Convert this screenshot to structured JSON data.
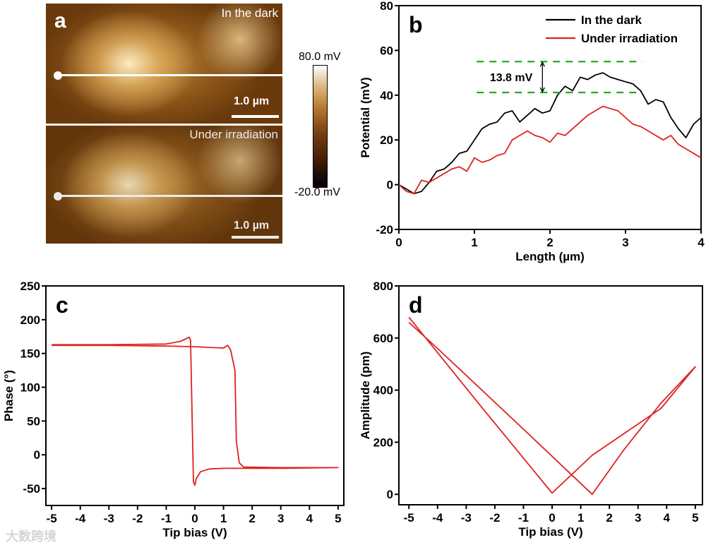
{
  "panel_a": {
    "label": "a",
    "top_image_label": "In the dark",
    "bottom_image_label": "Under irradiation",
    "scale_bar": "1.0 µm",
    "colorbar_max": "80.0 mV",
    "colorbar_min": "-20.0 mV"
  },
  "watermark": "大数跨境",
  "chart_data": [
    {
      "id": "b",
      "type": "line",
      "panel_label": "b",
      "xlabel": "Length (µm)",
      "ylabel": "Potential (mV)",
      "xlim": [
        0,
        4
      ],
      "ylim": [
        -20,
        80
      ],
      "xticks": [
        0,
        1,
        2,
        3,
        4
      ],
      "yticks": [
        -20,
        0,
        20,
        40,
        60,
        80
      ],
      "legend_position": "top-right",
      "annotation": {
        "text": "13.8 mV",
        "upper": 55,
        "lower": 41.2,
        "x_range": [
          1.03,
          3.22
        ],
        "arrow_x": 1.9,
        "color": "#22aa22"
      },
      "series": [
        {
          "name": "In the dark",
          "color": "#000000",
          "x": [
            0,
            0.1,
            0.2,
            0.3,
            0.4,
            0.5,
            0.6,
            0.7,
            0.8,
            0.9,
            1.0,
            1.1,
            1.2,
            1.3,
            1.4,
            1.5,
            1.6,
            1.7,
            1.8,
            1.9,
            2.0,
            2.1,
            2.2,
            2.3,
            2.4,
            2.5,
            2.6,
            2.7,
            2.8,
            2.9,
            3.0,
            3.1,
            3.2,
            3.3,
            3.4,
            3.5,
            3.6,
            3.7,
            3.8,
            3.9,
            4.0
          ],
          "y": [
            0,
            -2,
            -4,
            -3,
            1,
            6,
            7,
            10,
            14,
            15,
            20,
            25,
            27,
            28,
            32,
            33,
            28,
            31,
            34,
            32,
            33,
            40,
            44,
            42,
            48,
            47,
            49,
            50,
            48,
            47,
            46,
            45,
            42,
            36,
            38,
            37,
            30,
            25,
            21,
            27,
            30
          ]
        },
        {
          "name": "Under irradiation",
          "color": "#e02020",
          "x": [
            0,
            0.1,
            0.2,
            0.3,
            0.4,
            0.5,
            0.6,
            0.7,
            0.8,
            0.9,
            1.0,
            1.1,
            1.2,
            1.3,
            1.4,
            1.5,
            1.6,
            1.7,
            1.8,
            1.9,
            2.0,
            2.1,
            2.2,
            2.3,
            2.4,
            2.5,
            2.6,
            2.7,
            2.8,
            2.9,
            3.0,
            3.1,
            3.2,
            3.3,
            3.4,
            3.5,
            3.6,
            3.7,
            3.8,
            3.9,
            4.0
          ],
          "y": [
            0,
            -3,
            -4,
            2,
            1,
            3,
            5,
            7,
            8,
            6,
            12,
            10,
            11,
            13,
            14,
            20,
            22,
            24,
            22,
            21,
            19,
            23,
            22,
            25,
            28,
            31,
            33,
            35,
            34,
            33,
            30,
            27,
            26,
            24,
            22,
            20,
            22,
            18,
            16,
            14,
            12
          ]
        }
      ]
    },
    {
      "id": "c",
      "type": "line",
      "panel_label": "c",
      "xlabel": "Tip bias (V)",
      "ylabel": "Phase (°)",
      "xlim": [
        -5.2,
        5.2
      ],
      "ylim": [
        -75,
        250
      ],
      "xticks": [
        -5,
        -4,
        -3,
        -2,
        -1,
        0,
        1,
        2,
        3,
        4,
        5
      ],
      "yticks": [
        -50,
        0,
        50,
        100,
        150,
        200,
        250
      ],
      "series": [
        {
          "name": "Phase loop",
          "color": "#e02020",
          "x": [
            -5,
            -3,
            -1,
            0,
            0.5,
            1.0,
            1.15,
            1.25,
            1.4,
            1.45,
            1.55,
            1.7,
            3,
            5,
            3,
            1,
            0.5,
            0.2,
            0.05,
            0,
            -0.05,
            -0.15,
            -0.2,
            -0.5,
            -1,
            -3,
            -5
          ],
          "y": [
            162,
            162,
            161,
            160,
            159,
            158,
            162,
            155,
            125,
            20,
            -12,
            -18,
            -19,
            -19,
            -20,
            -20,
            -21,
            -25,
            -35,
            -45,
            -40,
            170,
            174,
            168,
            164,
            163,
            163
          ]
        }
      ]
    },
    {
      "id": "d",
      "type": "line",
      "panel_label": "d",
      "xlabel": "Tip bias (V)",
      "ylabel": "Amplitude (pm)",
      "xlim": [
        -5.35,
        5.25
      ],
      "ylim": [
        -40,
        800
      ],
      "xticks": [
        -5,
        -4,
        -3,
        -2,
        -1,
        0,
        1,
        2,
        3,
        4,
        5
      ],
      "yticks": [
        0,
        200,
        400,
        600,
        800
      ],
      "series": [
        {
          "name": "Amplitude loop",
          "color": "#e02020",
          "x": [
            -5,
            -2.5,
            0,
            1.4,
            3.8,
            5,
            3.8,
            2.5,
            1.4,
            -1,
            -4,
            -5
          ],
          "y": [
            680,
            340,
            5,
            150,
            330,
            490,
            350,
            170,
            0,
            250,
            560,
            660
          ]
        }
      ]
    }
  ]
}
